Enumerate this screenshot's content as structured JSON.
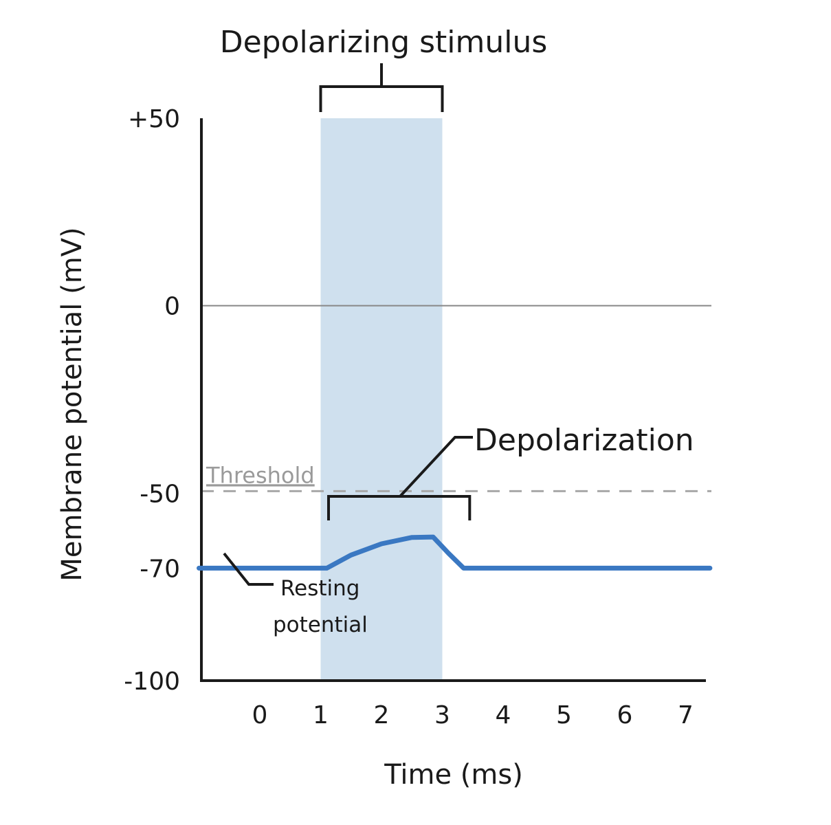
{
  "chart_data": {
    "type": "line",
    "xlabel": "Time (ms)",
    "ylabel": "Membrane potential (mV)",
    "xlim": [
      -1,
      7.4
    ],
    "ylim": [
      -100,
      50
    ],
    "x_ticks": [
      0,
      1,
      2,
      3,
      4,
      5,
      6,
      7
    ],
    "y_ticks": [
      {
        "value": 50,
        "label": "+50"
      },
      {
        "value": 0,
        "label": "0"
      },
      {
        "value": -50,
        "label": "-50"
      },
      {
        "value": -70,
        "label": "-70"
      },
      {
        "value": -100,
        "label": "-100"
      }
    ],
    "series": [
      {
        "color": "#3a78c2",
        "x": [
          -1,
          1.1,
          1.5,
          2.0,
          2.5,
          2.85,
          3.1,
          3.35,
          7.4
        ],
        "y": [
          -70,
          -70,
          -66.5,
          -63.5,
          -61.8,
          -61.7,
          -66,
          -70,
          -70
        ]
      }
    ],
    "stimulus_band": {
      "x_start": 1,
      "x_end": 3,
      "color": "#cfe0ee"
    },
    "zero_line": {
      "y": 0,
      "color": "#888888"
    },
    "threshold": {
      "y": -50,
      "label": "Threshold",
      "color": "#a8a8a8"
    },
    "annotations": {
      "stimulus_label": "Depolarizing stimulus",
      "depolarization_label": "Depolarization",
      "resting_label_line1": "Resting",
      "resting_label_line2": "potential"
    }
  }
}
